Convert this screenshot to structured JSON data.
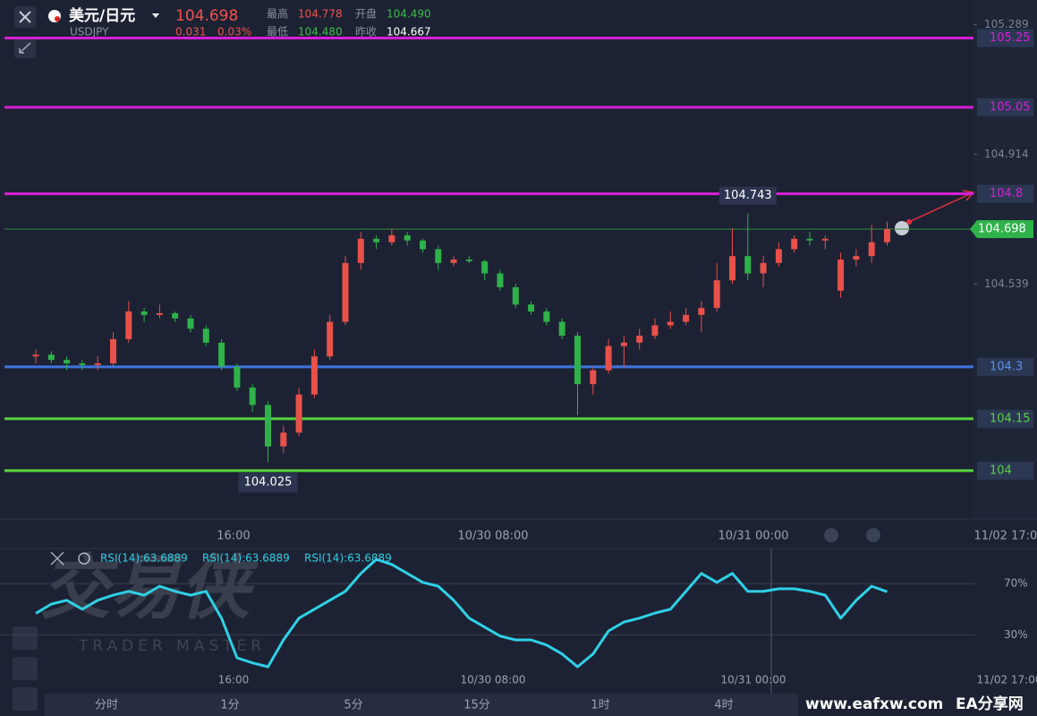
{
  "header": {
    "pair": "美元/日元",
    "symbol": "USDJPY",
    "price": "104.698",
    "change": "0.031",
    "change_pct": "0.03%",
    "stats": [
      {
        "label": "最高",
        "value": "104.778",
        "color": "#f0524d"
      },
      {
        "label": "开盘",
        "value": "104.490",
        "color": "#3dbb4c"
      },
      {
        "label": "最低",
        "value": "104.480",
        "color": "#3dbb4c"
      },
      {
        "label": "昨收",
        "value": "104.667",
        "color": "#ffffff"
      }
    ]
  },
  "price_chart": {
    "type": "candlestick",
    "up_color": "#e8514a",
    "down_color": "#2fb24a",
    "ylim": [
      103.86,
      105.36
    ],
    "yticks": [
      105.289,
      104.914,
      104.539
    ],
    "levels": [
      {
        "value": 105.25,
        "color": "#d61fd6"
      },
      {
        "value": 105.05,
        "color": "#d61fd6"
      },
      {
        "value": 104.8,
        "color": "#d61fd6"
      },
      {
        "value": 104.3,
        "color": "#3f74e0"
      },
      {
        "value": 104.15,
        "color": "#55d43f"
      },
      {
        "value": 104,
        "color": "#55d43f"
      }
    ],
    "current_price": 104.698,
    "high_callout": 104.743,
    "low_callout": 104.025,
    "candles": [
      [
        104.33,
        104.35,
        104.31,
        104.335
      ],
      [
        104.335,
        104.345,
        104.31,
        104.32
      ],
      [
        104.32,
        104.33,
        104.29,
        104.31
      ],
      [
        104.31,
        104.32,
        104.29,
        104.305
      ],
      [
        104.305,
        104.33,
        104.29,
        104.31
      ],
      [
        104.31,
        104.4,
        104.3,
        104.38
      ],
      [
        104.38,
        104.49,
        104.37,
        104.46
      ],
      [
        104.46,
        104.47,
        104.43,
        104.45
      ],
      [
        104.45,
        104.48,
        104.44,
        104.455
      ],
      [
        104.455,
        104.46,
        104.43,
        104.44
      ],
      [
        104.44,
        104.45,
        104.4,
        104.41
      ],
      [
        104.41,
        104.42,
        104.36,
        104.37
      ],
      [
        104.37,
        104.38,
        104.29,
        104.3
      ],
      [
        104.3,
        104.31,
        104.23,
        104.24
      ],
      [
        104.24,
        104.25,
        104.17,
        104.19
      ],
      [
        104.19,
        104.2,
        104.025,
        104.07
      ],
      [
        104.07,
        104.13,
        104.05,
        104.11
      ],
      [
        104.11,
        104.24,
        104.1,
        104.22
      ],
      [
        104.22,
        104.35,
        104.21,
        104.33
      ],
      [
        104.33,
        104.45,
        104.32,
        104.43
      ],
      [
        104.43,
        104.62,
        104.42,
        104.6
      ],
      [
        104.6,
        104.69,
        104.58,
        104.67
      ],
      [
        104.67,
        104.68,
        104.64,
        104.66
      ],
      [
        104.66,
        104.7,
        104.65,
        104.68
      ],
      [
        104.68,
        104.69,
        104.65,
        104.665
      ],
      [
        104.665,
        104.67,
        104.63,
        104.64
      ],
      [
        104.64,
        104.65,
        104.58,
        104.6
      ],
      [
        104.6,
        104.62,
        104.59,
        104.61
      ],
      [
        104.61,
        104.62,
        104.6,
        104.605
      ],
      [
        104.605,
        104.61,
        104.55,
        104.57
      ],
      [
        104.57,
        104.58,
        104.52,
        104.53
      ],
      [
        104.53,
        104.54,
        104.47,
        104.48
      ],
      [
        104.48,
        104.49,
        104.45,
        104.46
      ],
      [
        104.46,
        104.47,
        104.42,
        104.43
      ],
      [
        104.43,
        104.44,
        104.38,
        104.39
      ],
      [
        104.39,
        104.4,
        104.16,
        104.25
      ],
      [
        104.25,
        104.3,
        104.22,
        104.29
      ],
      [
        104.29,
        104.38,
        104.28,
        104.36
      ],
      [
        104.36,
        104.39,
        104.3,
        104.37
      ],
      [
        104.37,
        104.41,
        104.35,
        104.39
      ],
      [
        104.39,
        104.44,
        104.38,
        104.42
      ],
      [
        104.42,
        104.46,
        104.41,
        104.43
      ],
      [
        104.43,
        104.47,
        104.42,
        104.45
      ],
      [
        104.45,
        104.49,
        104.4,
        104.47
      ],
      [
        104.47,
        104.6,
        104.46,
        104.55
      ],
      [
        104.55,
        104.7,
        104.54,
        104.62
      ],
      [
        104.62,
        104.743,
        104.55,
        104.57
      ],
      [
        104.57,
        104.62,
        104.53,
        104.6
      ],
      [
        104.6,
        104.66,
        104.59,
        104.64
      ],
      [
        104.64,
        104.68,
        104.63,
        104.67
      ],
      [
        104.67,
        104.69,
        104.65,
        104.665
      ],
      [
        104.665,
        104.68,
        104.64,
        104.67
      ],
      [
        104.52,
        104.63,
        104.5,
        104.61
      ],
      [
        104.61,
        104.64,
        104.59,
        104.62
      ],
      [
        104.62,
        104.71,
        104.6,
        104.66
      ],
      [
        104.66,
        104.72,
        104.65,
        104.698
      ]
    ]
  },
  "time_labels": [
    "16:00",
    "10/30 08:00",
    "10/31 00:00",
    "11/02 17:00"
  ],
  "rsi_panel": {
    "type": "line",
    "color": "#2fd0e6",
    "legend": [
      "RSI(14):63.6889",
      "RSI(14):63.6889",
      "RSI(14):63.6889"
    ],
    "ylim": [
      -16,
      96
    ],
    "yticks": [
      {
        "value": 70,
        "label": "70%"
      },
      {
        "value": 30,
        "label": "30%"
      }
    ],
    "values": [
      46.8,
      54,
      57,
      50,
      57,
      61,
      64,
      61,
      68,
      64,
      61,
      64,
      43,
      12,
      8,
      5,
      26,
      43,
      50,
      57,
      64,
      78,
      89,
      85,
      78,
      71,
      68,
      57,
      43,
      36,
      29,
      26,
      26,
      22,
      15,
      5,
      15,
      33,
      40,
      43,
      47,
      50,
      64,
      78,
      71,
      78,
      64,
      64,
      66,
      66,
      64,
      61,
      43,
      57,
      68,
      63.69
    ]
  },
  "timeframes": [
    "分时",
    "1分",
    "5分",
    "15分",
    "1时",
    "4时"
  ],
  "watermark": {
    "brand": "交易侠",
    "brand_sub": "TRADER MASTER",
    "site": "www.eafxw.com",
    "site_name": "EA分享网"
  }
}
